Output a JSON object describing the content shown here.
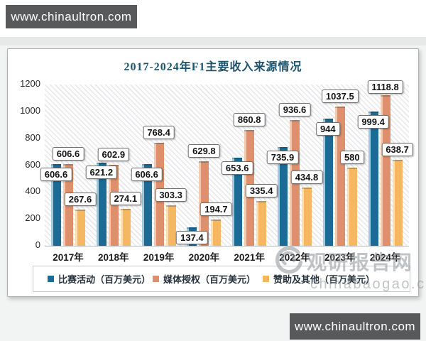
{
  "page": {
    "top_badge": "www.chinaultron.com",
    "bottom_badge": "www.chinaultron.com"
  },
  "watermark": {
    "name": "观研报告网",
    "domain": "chinabaogao.com"
  },
  "chart_data": {
    "type": "bar",
    "title": "2017-2024年F1主要收入来源情况",
    "categories": [
      "2017年",
      "2018年",
      "2019年",
      "2020年",
      "2021年",
      "2022年",
      "2023年",
      "2024年"
    ],
    "series": [
      {
        "name": "比赛活动（百万美元）",
        "color": "#1b6b94",
        "highlight": "#a5cadd",
        "values": [
          606.6,
          621.2,
          606.6,
          137.4,
          653.6,
          735.9,
          944,
          999.4
        ]
      },
      {
        "name": "媒体授权（百万美元）",
        "color": "#df8f6b",
        "highlight": "#f3cab0",
        "values": [
          606.6,
          602.9,
          768.4,
          629.8,
          860.8,
          936.6,
          1037.5,
          1118.8
        ]
      },
      {
        "name": "赞助及其他（百万美元）",
        "color": "#f5b860",
        "highlight": "#fbdfac",
        "values": [
          267.6,
          274.1,
          303.3,
          194.7,
          335.4,
          434.8,
          580,
          638.7
        ]
      }
    ],
    "ylim": [
      0,
      1200
    ],
    "yticks": [
      0,
      200,
      400,
      600,
      800,
      1000,
      1200
    ],
    "xlabel": "",
    "ylabel": "",
    "grid": false,
    "legend_position": "bottom",
    "data_labels": true
  }
}
